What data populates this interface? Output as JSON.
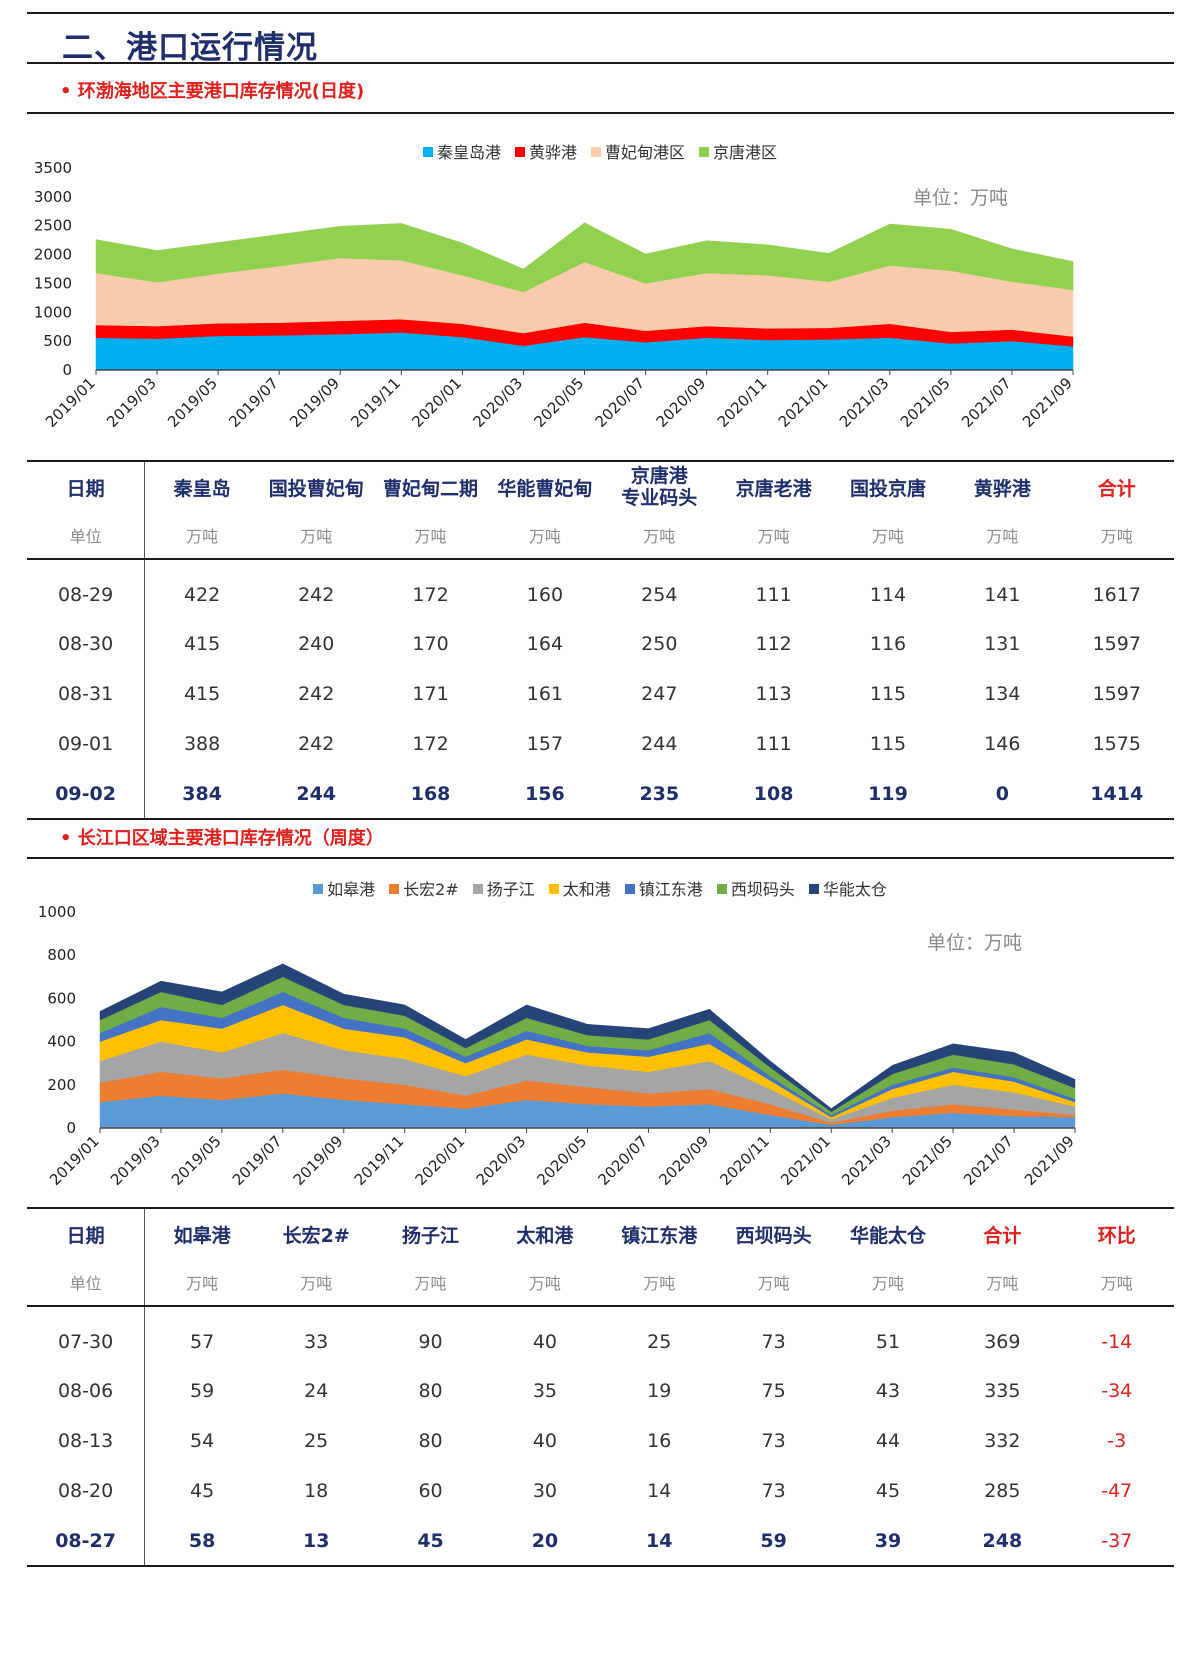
{
  "page_title": "二、港口运行情况",
  "section1": {
    "title": "• 环渤海地区主要港口库存情况(日度)",
    "unit_note": "单位：万吨",
    "table": {
      "headers": [
        "日期",
        "秦皇岛",
        "国投曹妃甸",
        "曹妃甸二期",
        "华能曹妃甸",
        "京唐港专业码头",
        "京唐老港",
        "国投京唐",
        "黄骅港",
        "合计"
      ],
      "units": [
        "单位",
        "万吨",
        "万吨",
        "万吨",
        "万吨",
        "万吨",
        "万吨",
        "万吨",
        "万吨",
        "万吨"
      ],
      "rows": [
        [
          "08-29",
          "422",
          "242",
          "172",
          "160",
          "254",
          "111",
          "114",
          "141",
          "1617"
        ],
        [
          "08-30",
          "415",
          "240",
          "170",
          "164",
          "250",
          "112",
          "116",
          "131",
          "1597"
        ],
        [
          "08-31",
          "415",
          "242",
          "171",
          "161",
          "247",
          "113",
          "115",
          "134",
          "1597"
        ],
        [
          "09-01",
          "388",
          "242",
          "172",
          "157",
          "244",
          "111",
          "115",
          "146",
          "1575"
        ],
        [
          "09-02",
          "384",
          "244",
          "168",
          "156",
          "235",
          "108",
          "119",
          "0",
          "1414"
        ]
      ]
    }
  },
  "section2": {
    "title": "• 长江口区域主要港口库存情况（周度）",
    "unit_note": "单位：万吨",
    "table": {
      "headers": [
        "日期",
        "如皋港",
        "长宏2#",
        "扬子江",
        "太和港",
        "镇江东港",
        "西坝码头",
        "华能太仓",
        "合计",
        "环比"
      ],
      "units": [
        "单位",
        "万吨",
        "万吨",
        "万吨",
        "万吨",
        "万吨",
        "万吨",
        "万吨",
        "万吨",
        "万吨"
      ],
      "rows": [
        [
          "07-30",
          "57",
          "33",
          "90",
          "40",
          "25",
          "73",
          "51",
          "369",
          "-14"
        ],
        [
          "08-06",
          "59",
          "24",
          "80",
          "35",
          "19",
          "75",
          "43",
          "335",
          "-34"
        ],
        [
          "08-13",
          "54",
          "25",
          "80",
          "40",
          "16",
          "73",
          "44",
          "332",
          "-3"
        ],
        [
          "08-20",
          "45",
          "18",
          "60",
          "30",
          "14",
          "73",
          "45",
          "285",
          "-47"
        ],
        [
          "08-27",
          "58",
          "13",
          "45",
          "20",
          "14",
          "59",
          "39",
          "248",
          "-37"
        ]
      ]
    }
  },
  "chart_data": [
    {
      "type": "area",
      "stacked": true,
      "title": "",
      "xlabel": "",
      "ylabel": "",
      "ylim": [
        0,
        3500
      ],
      "yticks": [
        "0",
        "500",
        "1000",
        "1500",
        "2000",
        "2500",
        "3000",
        "3500"
      ],
      "x": [
        "2019/01",
        "2019/03",
        "2019/05",
        "2019/07",
        "2019/09",
        "2019/11",
        "2020/01",
        "2020/03",
        "2020/05",
        "2020/07",
        "2020/09",
        "2020/11",
        "2021/01",
        "2021/03",
        "2021/05",
        "2021/07",
        "2021/09"
      ],
      "legend_position": "top",
      "colors": [
        "#00b0f0",
        "#ff0000",
        "#f8cbad",
        "#92d050"
      ],
      "series": [
        {
          "name": "秦皇岛港",
          "values": [
            560,
            540,
            590,
            600,
            620,
            650,
            570,
            420,
            570,
            480,
            560,
            520,
            530,
            560,
            460,
            500,
            410
          ]
        },
        {
          "name": "黄骅港",
          "values": [
            220,
            220,
            220,
            220,
            230,
            230,
            230,
            220,
            250,
            200,
            200,
            200,
            200,
            240,
            200,
            200,
            170
          ]
        },
        {
          "name": "曹妃甸港区",
          "values": [
            900,
            760,
            860,
            980,
            1090,
            1020,
            840,
            710,
            1050,
            820,
            920,
            920,
            800,
            1010,
            1060,
            830,
            810
          ]
        },
        {
          "name": "京唐港区",
          "values": [
            580,
            550,
            540,
            550,
            550,
            640,
            560,
            400,
            680,
            510,
            560,
            530,
            490,
            720,
            720,
            570,
            490
          ]
        }
      ]
    },
    {
      "type": "area",
      "stacked": true,
      "title": "",
      "xlabel": "",
      "ylabel": "",
      "ylim": [
        0,
        1000
      ],
      "yticks": [
        "0",
        "200",
        "400",
        "600",
        "800",
        "1000"
      ],
      "x": [
        "2019/01",
        "2019/03",
        "2019/05",
        "2019/07",
        "2019/09",
        "2019/11",
        "2020/01",
        "2020/03",
        "2020/05",
        "2020/07",
        "2020/09",
        "2020/11",
        "2021/01",
        "2021/03",
        "2021/05",
        "2021/07",
        "2021/09"
      ],
      "legend_position": "top",
      "colors": [
        "#5b9bd5",
        "#ed7d31",
        "#a5a5a5",
        "#ffc000",
        "#4472c4",
        "#70ad47",
        "#264478"
      ],
      "series": [
        {
          "name": "如皋港",
          "values": [
            120,
            150,
            130,
            160,
            130,
            110,
            90,
            130,
            110,
            100,
            110,
            60,
            15,
            50,
            70,
            55,
            50
          ]
        },
        {
          "name": "长宏2#",
          "values": [
            90,
            110,
            100,
            110,
            100,
            90,
            60,
            90,
            80,
            60,
            70,
            50,
            10,
            30,
            40,
            30,
            10
          ]
        },
        {
          "name": "扬子江",
          "values": [
            100,
            140,
            120,
            170,
            130,
            120,
            90,
            120,
            100,
            100,
            130,
            70,
            15,
            60,
            90,
            80,
            40
          ]
        },
        {
          "name": "太和港",
          "values": [
            90,
            100,
            110,
            130,
            100,
            100,
            60,
            70,
            60,
            70,
            80,
            40,
            10,
            40,
            60,
            50,
            20
          ]
        },
        {
          "name": "镇江东港",
          "values": [
            40,
            60,
            50,
            60,
            50,
            40,
            30,
            40,
            30,
            30,
            50,
            20,
            10,
            20,
            20,
            20,
            15
          ]
        },
        {
          "name": "西坝码头",
          "values": [
            60,
            70,
            60,
            70,
            60,
            60,
            40,
            60,
            50,
            50,
            60,
            40,
            15,
            50,
            60,
            60,
            50
          ]
        },
        {
          "name": "华能太仓",
          "values": [
            40,
            50,
            60,
            60,
            50,
            50,
            40,
            60,
            50,
            50,
            50,
            30,
            15,
            40,
            50,
            55,
            40
          ]
        }
      ]
    }
  ]
}
